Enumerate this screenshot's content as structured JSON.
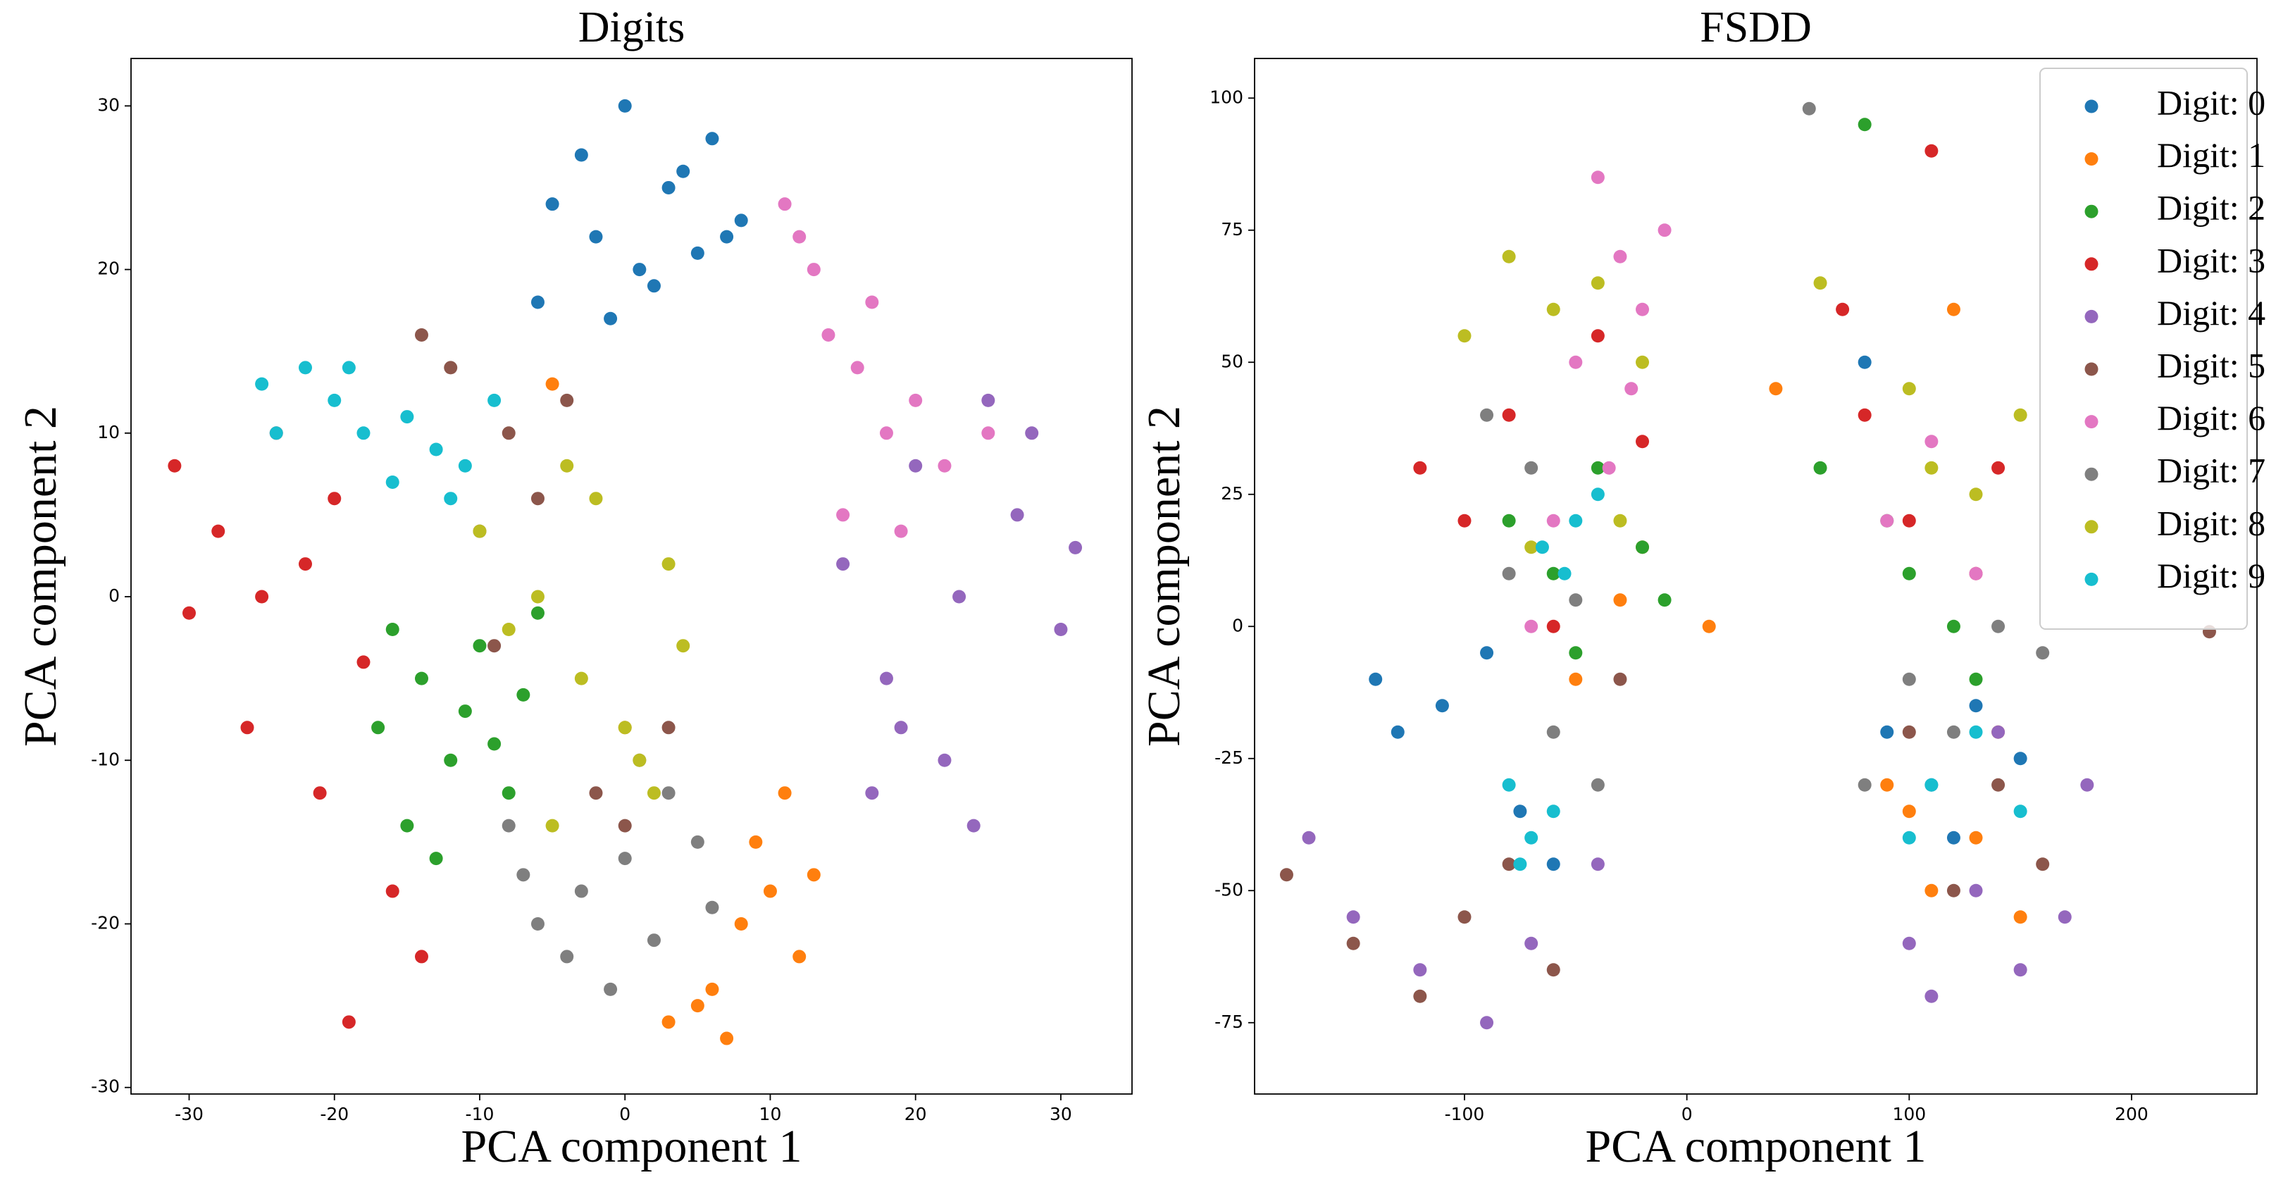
{
  "chart_data": [
    {
      "type": "scatter",
      "title": "Digits",
      "xlabel": "PCA component 1",
      "ylabel": "PCA component 2",
      "xlim": [
        -34,
        34.9
      ],
      "ylim": [
        -30.4,
        32.9
      ],
      "xticks": [
        -30,
        -20,
        -10,
        0,
        10,
        20,
        30
      ],
      "yticks": [
        -30,
        -20,
        -10,
        0,
        10,
        20,
        30
      ],
      "series": [
        {
          "color": "#1f77b4",
          "x": [
            -5,
            -2,
            0,
            3,
            5,
            8,
            -3,
            2,
            6,
            -6,
            1,
            4,
            -1,
            7
          ],
          "y": [
            24,
            22,
            30,
            25,
            21,
            23,
            27,
            19,
            28,
            18,
            20,
            26,
            17,
            22
          ]
        },
        {
          "color": "#ff7f0e",
          "x": [
            3,
            6,
            8,
            10,
            12,
            5,
            9,
            11,
            -5,
            0,
            13,
            7
          ],
          "y": [
            -26,
            -24,
            -20,
            -18,
            -22,
            -25,
            -15,
            -12,
            13,
            -8,
            -17,
            -27
          ]
        },
        {
          "color": "#2ca02c",
          "x": [
            -17,
            -14,
            -12,
            -10,
            -8,
            -15,
            -11,
            -6,
            -13,
            -9,
            -16,
            -7
          ],
          "y": [
            -8,
            -5,
            -10,
            -3,
            -12,
            -14,
            -7,
            -1,
            -16,
            -9,
            -2,
            -6
          ]
        },
        {
          "color": "#d62728",
          "x": [
            -31,
            -28,
            -25,
            -22,
            -20,
            -18,
            -26,
            -24,
            -21,
            -16,
            -30,
            -19,
            -14
          ],
          "y": [
            8,
            4,
            0,
            2,
            6,
            -4,
            -8,
            10,
            -12,
            -18,
            -1,
            -26,
            -22
          ]
        },
        {
          "color": "#9467bd",
          "x": [
            15,
            18,
            20,
            22,
            25,
            27,
            30,
            24,
            19,
            28,
            17,
            23,
            31
          ],
          "y": [
            2,
            -5,
            8,
            -10,
            12,
            5,
            -2,
            -14,
            -8,
            10,
            -12,
            0,
            3
          ]
        },
        {
          "color": "#8c564b",
          "x": [
            -12,
            -8,
            -4,
            -10,
            -2,
            -14,
            0,
            -6,
            3,
            -9
          ],
          "y": [
            14,
            10,
            12,
            4,
            -12,
            16,
            -14,
            6,
            -8,
            -3
          ]
        },
        {
          "color": "#e377c2",
          "x": [
            12,
            14,
            16,
            18,
            20,
            22,
            15,
            17,
            25,
            11,
            19,
            13
          ],
          "y": [
            22,
            16,
            14,
            10,
            12,
            8,
            5,
            18,
            10,
            24,
            4,
            20
          ]
        },
        {
          "color": "#7f7f7f",
          "x": [
            -6,
            -3,
            0,
            2,
            5,
            -8,
            -1,
            3,
            6,
            -4,
            1,
            -7
          ],
          "y": [
            -20,
            -18,
            -16,
            -21,
            -15,
            -14,
            -24,
            -12,
            -19,
            -22,
            -10,
            -17
          ]
        },
        {
          "color": "#bcbd22",
          "x": [
            -10,
            -6,
            -3,
            0,
            2,
            4,
            -8,
            -2,
            1,
            -5,
            3,
            -4
          ],
          "y": [
            4,
            0,
            -5,
            -8,
            -12,
            -3,
            -2,
            6,
            -10,
            -14,
            2,
            8
          ]
        },
        {
          "color": "#17becf",
          "x": [
            -25,
            -22,
            -20,
            -18,
            -15,
            -13,
            -11,
            -24,
            -19,
            -16,
            -12,
            -9
          ],
          "y": [
            13,
            14,
            12,
            10,
            11,
            9,
            8,
            10,
            14,
            7,
            6,
            12
          ]
        }
      ]
    },
    {
      "type": "scatter",
      "title": "FSDD",
      "xlabel": "PCA component 1",
      "ylabel": "PCA component 2",
      "xlim": [
        -194.4,
        256.4
      ],
      "ylim": [
        -88.5,
        107.5
      ],
      "xticks": [
        -100,
        0,
        100,
        200
      ],
      "yticks": [
        -75,
        -50,
        -25,
        0,
        25,
        50,
        75,
        100
      ],
      "legend": "upper right",
      "series": [
        {
          "name": "Digit: 0",
          "color": "#1f77b4",
          "x": [
            -110,
            -130,
            -90,
            -75,
            -60,
            90,
            110,
            130,
            120,
            150,
            80,
            -140
          ],
          "y": [
            -15,
            -20,
            -5,
            -35,
            -45,
            -20,
            -30,
            -15,
            -40,
            -25,
            50,
            -10
          ]
        },
        {
          "name": "Digit: 1",
          "color": "#ff7f0e",
          "x": [
            -50,
            -30,
            10,
            40,
            90,
            110,
            130,
            150,
            100,
            -20,
            120,
            140
          ],
          "y": [
            -10,
            5,
            0,
            45,
            -30,
            -50,
            -40,
            -55,
            -35,
            15,
            60,
            -20
          ]
        },
        {
          "name": "Digit: 2",
          "color": "#2ca02c",
          "x": [
            -80,
            -60,
            -40,
            -20,
            -10,
            100,
            120,
            90,
            130,
            -50,
            80,
            60
          ],
          "y": [
            20,
            10,
            30,
            15,
            5,
            10,
            0,
            20,
            -10,
            -5,
            95,
            30
          ]
        },
        {
          "name": "Digit: 3",
          "color": "#d62728",
          "x": [
            -120,
            -100,
            -80,
            -40,
            -20,
            80,
            100,
            130,
            140,
            -60,
            70,
            110
          ],
          "y": [
            30,
            20,
            40,
            55,
            35,
            40,
            20,
            10,
            30,
            0,
            60,
            90
          ]
        },
        {
          "name": "Digit: 4",
          "color": "#9467bd",
          "x": [
            -170,
            -150,
            -120,
            -90,
            -70,
            100,
            130,
            150,
            170,
            180,
            140,
            110,
            -40
          ],
          "y": [
            -40,
            -55,
            -65,
            -75,
            -60,
            -60,
            -50,
            -65,
            -55,
            -30,
            -20,
            -70,
            -45
          ]
        },
        {
          "name": "Digit: 5",
          "color": "#8c564b",
          "x": [
            -180,
            -150,
            -120,
            -100,
            -80,
            -60,
            100,
            120,
            140,
            160,
            -30,
            235
          ],
          "y": [
            -47,
            -60,
            -70,
            -55,
            -45,
            -65,
            -20,
            -50,
            -30,
            -45,
            -10,
            -1
          ]
        },
        {
          "name": "Digit: 6",
          "color": "#e377c2",
          "x": [
            -40,
            -30,
            -20,
            -10,
            -50,
            -60,
            110,
            130,
            -70,
            -35,
            90,
            -25
          ],
          "y": [
            85,
            70,
            60,
            75,
            50,
            20,
            35,
            10,
            0,
            30,
            20,
            45
          ]
        },
        {
          "name": "Digit: 7",
          "color": "#7f7f7f",
          "x": [
            -90,
            -70,
            -60,
            -40,
            -80,
            55,
            100,
            120,
            140,
            80,
            -50,
            160
          ],
          "y": [
            40,
            30,
            -20,
            -30,
            10,
            98,
            -10,
            -20,
            0,
            -30,
            5,
            -5
          ]
        },
        {
          "name": "Digit: 8",
          "color": "#bcbd22",
          "x": [
            -100,
            -80,
            -60,
            -40,
            -20,
            -70,
            110,
            130,
            150,
            100,
            -30,
            60
          ],
          "y": [
            55,
            70,
            60,
            65,
            50,
            15,
            30,
            25,
            40,
            45,
            20,
            65
          ]
        },
        {
          "name": "Digit: 9",
          "color": "#17becf",
          "x": [
            -80,
            -70,
            -60,
            -50,
            -65,
            -55,
            -75,
            110,
            130,
            150,
            -40,
            100
          ],
          "y": [
            -30,
            -40,
            -35,
            20,
            15,
            10,
            -45,
            -30,
            -20,
            -35,
            25,
            -40
          ]
        }
      ]
    }
  ]
}
